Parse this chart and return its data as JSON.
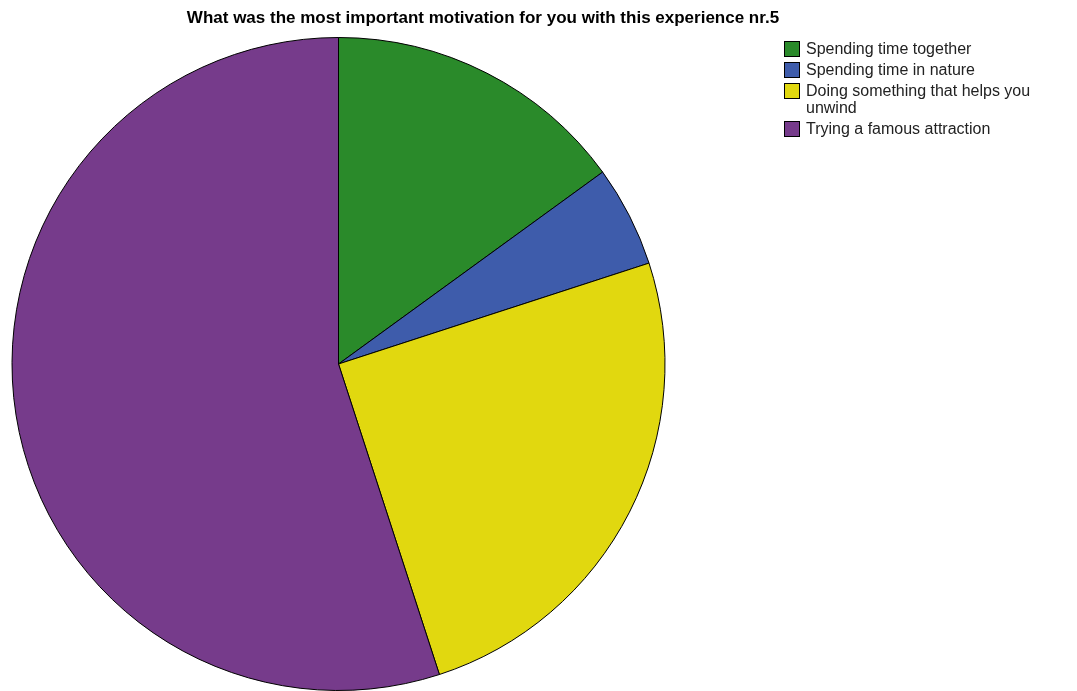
{
  "chart_data": {
    "type": "pie",
    "title": "What was the most important motivation for you with this experience nr.5",
    "categories": [
      "Spending time together",
      "Spending time in nature",
      "Doing something that helps you unwind",
      "Trying a famous attraction"
    ],
    "values": [
      15,
      5,
      25,
      55
    ],
    "colors": [
      "#2a8a2a",
      "#3e5cab",
      "#e1d80f",
      "#763b8b"
    ],
    "legend": "top right"
  }
}
